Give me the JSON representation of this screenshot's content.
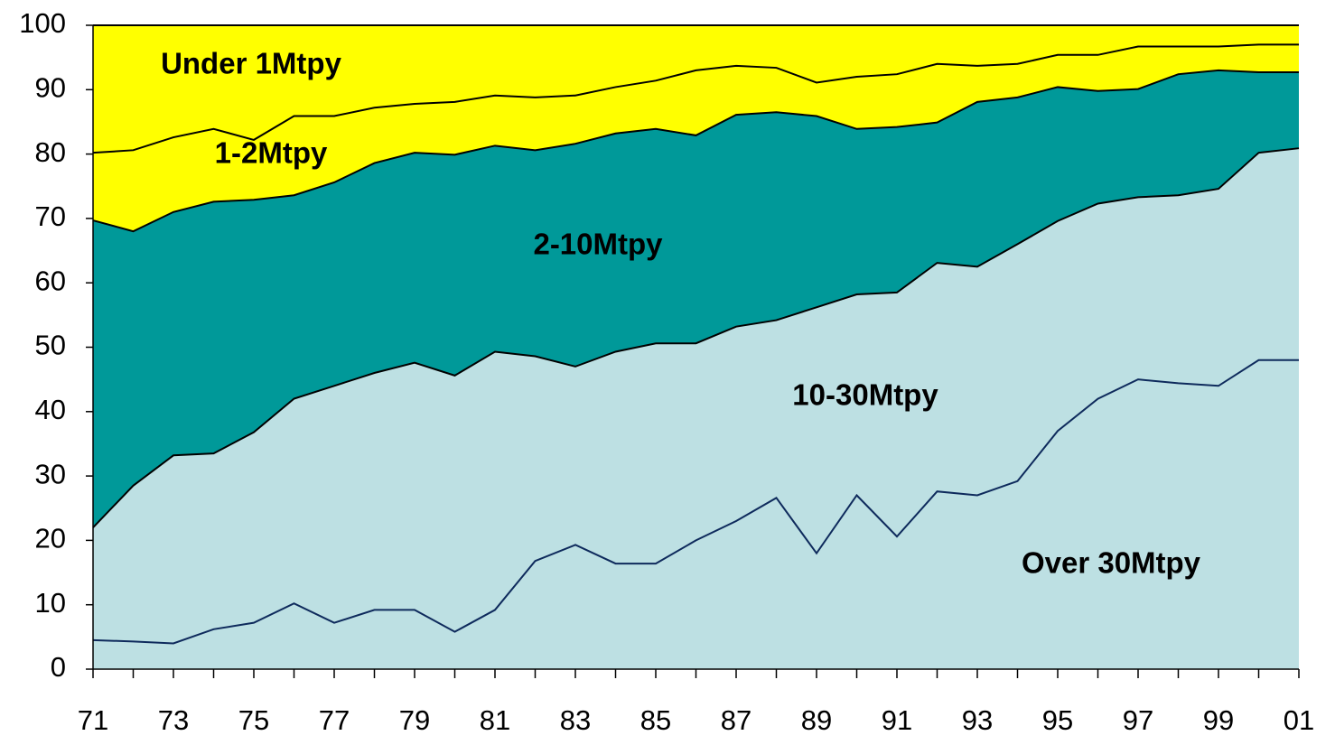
{
  "chart_data": {
    "type": "area",
    "stacked": true,
    "categories": [
      "71",
      null,
      "73",
      null,
      "75",
      null,
      "77",
      null,
      "79",
      null,
      "81",
      null,
      "83",
      null,
      "85",
      null,
      "87",
      null,
      "89",
      null,
      "91",
      null,
      "93",
      null,
      "95",
      null,
      "97",
      null,
      "99",
      null,
      "01"
    ],
    "ylim": [
      0,
      100
    ],
    "yticks": [
      0,
      10,
      20,
      30,
      40,
      50,
      60,
      70,
      80,
      90,
      100
    ],
    "series": [
      {
        "name": "Over 30Mtpy",
        "color": "#bde0e3",
        "line_color": "#0e2a5c",
        "values": [
          4.5,
          4.3,
          4,
          6.2,
          7.2,
          10.2,
          7.2,
          9.2,
          9.2,
          5.8,
          9.2,
          16.8,
          19.3,
          16.4,
          16.4,
          20,
          23,
          26.6,
          18,
          27,
          20.6,
          27.6,
          27,
          29.2,
          37,
          42,
          45,
          44.4,
          44,
          48,
          48
        ]
      },
      {
        "name": "10-30Mtpy",
        "color": "#bde0e3",
        "line_color": "#000000",
        "values": [
          17.5,
          24.2,
          29.2,
          27.3,
          29.6,
          31.8,
          36.8,
          36.8,
          38.4,
          39.8,
          40.1,
          31.8,
          27.7,
          32.9,
          34.2,
          30.6,
          30.2,
          27.6,
          38.2,
          31.2,
          37.9,
          35.5,
          35.5,
          36.8,
          32.6,
          30.3,
          28.3,
          29.2,
          30.6,
          32.2,
          32.9
        ]
      },
      {
        "name": "2-10Mtpy",
        "color": "#009999",
        "line_color": "#000000",
        "values": [
          47.7,
          39.5,
          37.8,
          39.1,
          36.1,
          31.6,
          31.6,
          32.6,
          32.6,
          34.3,
          32,
          32,
          34.6,
          33.9,
          33.3,
          32.3,
          32.9,
          32.3,
          29.7,
          25.7,
          25.7,
          21.8,
          25.6,
          22.8,
          20.8,
          17.5,
          16.8,
          18.8,
          18.4,
          12.5,
          11.8
        ]
      },
      {
        "name": "1-2Mtpy",
        "color": "#ffff00",
        "line_color": "#000000",
        "values": [
          10.5,
          12.6,
          11.6,
          11.3,
          9.3,
          12.3,
          10.3,
          8.6,
          7.6,
          8.2,
          7.8,
          8.2,
          7.5,
          7.2,
          7.5,
          10.1,
          7.6,
          6.9,
          5.2,
          8.1,
          8.2,
          9.1,
          5.6,
          5.2,
          5,
          5.6,
          6.6,
          4.3,
          3.7,
          4.3,
          4.3
        ]
      },
      {
        "name": "Under 1Mtpy",
        "color": "#ffff00",
        "line_color": "#000000",
        "values": [
          19.8,
          19.4,
          17.4,
          16.1,
          17.8,
          14.1,
          14.1,
          12.8,
          12.2,
          11.9,
          10.9,
          11.2,
          10.9,
          9.6,
          8.6,
          7,
          6.3,
          6.6,
          8.9,
          8,
          7.6,
          6,
          6.3,
          6,
          4.6,
          4.6,
          3.3,
          3.3,
          3.3,
          3,
          3
        ]
      }
    ]
  }
}
